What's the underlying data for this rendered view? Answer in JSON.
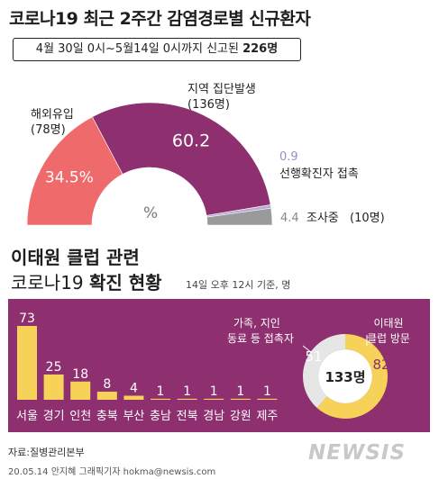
{
  "title": "코로나19 최근 2주간 감염경로별 신규환자",
  "period": {
    "text": "4월 30일 0시~5월14일 0시까지 신고된 ",
    "total": "226명"
  },
  "unit_label": "%",
  "colors": {
    "local": "#8e2f6f",
    "overseas": "#ef6a6a",
    "contact": "#b6aad6",
    "investigating": "#9a9a9a",
    "yellow": "#f7d258",
    "grey_ring": "#e6e6e6"
  },
  "section2": {
    "title_line1": "이태원 클럽 관련",
    "title_line2_plain": "코로나19 ",
    "title_line2_bold": "확진 현황",
    "as_of": "14일 오후 12시 기준, 명"
  },
  "source": "자료:질병관리본부",
  "credit": "20.05.14 안지혜 그래픽기자 hokma@newsis.com",
  "logo": "NEWSIS",
  "chart_data": [
    {
      "type": "pie",
      "subtype": "half-donut",
      "unit": "%",
      "slices": [
        {
          "name": "해외유입",
          "count_label": "(78명)",
          "value": 34.5,
          "value_label": "34.5",
          "color": "#ef6a6a"
        },
        {
          "name": "지역 집단발생",
          "count_label": "(136명)",
          "value": 60.2,
          "value_label": "60.2",
          "color": "#8e2f6f"
        },
        {
          "name": "선행확진자 접촉",
          "count_label": "",
          "value": 0.9,
          "value_label": "0.9",
          "color": "#b6aad6"
        },
        {
          "name": "조사중",
          "count_label": "(10명)",
          "value": 4.4,
          "value_label": "4.4",
          "color": "#9a9a9a"
        }
      ]
    },
    {
      "type": "bar",
      "unit": "명",
      "categories": [
        "서울",
        "경기",
        "인천",
        "충북",
        "부산",
        "충남",
        "전북",
        "경남",
        "강원",
        "제주"
      ],
      "values": [
        73,
        25,
        18,
        8,
        4,
        1,
        1,
        1,
        1,
        1
      ],
      "ylim": [
        0,
        73
      ],
      "color": "#f7d258"
    },
    {
      "type": "pie",
      "subtype": "donut",
      "unit": "명",
      "total_label": "133명",
      "slices": [
        {
          "name": "가족, 지인 동료 등 접촉자",
          "label_lines": [
            "가족, 지인",
            "동료 등 접촉자"
          ],
          "value": 51,
          "color": "#e6e6e6"
        },
        {
          "name": "이태원 클럽 방문",
          "label_lines": [
            "이태원",
            "클럽 방문"
          ],
          "value": 82,
          "color": "#f7d258"
        }
      ]
    }
  ]
}
